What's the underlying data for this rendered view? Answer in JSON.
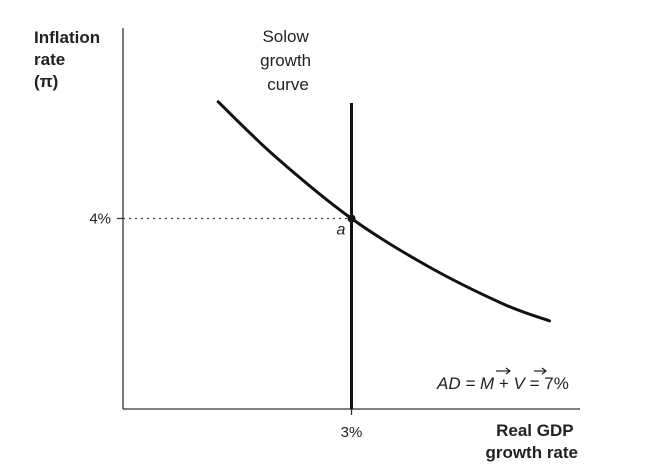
{
  "chart_data": {
    "type": "line",
    "ylabel_lines": [
      "Inflation",
      "rate",
      "(π)"
    ],
    "xlabel_lines": [
      "Real GDP",
      "growth rate"
    ],
    "vertical_line": {
      "x": 3,
      "label_lines": [
        "Solow",
        "growth",
        "curve"
      ]
    },
    "ad_curve": {
      "x": [
        1.25,
        2.0,
        3.0,
        4.0,
        5.0,
        5.6
      ],
      "y": [
        6.45,
        5.3,
        4.0,
        3.0,
        2.2,
        1.85
      ],
      "label": {
        "prefix": "AD = ",
        "m": "M",
        "plus": " + ",
        "v": "V",
        "suffix": " = 7%"
      }
    },
    "point": {
      "x": 3,
      "y": 4,
      "label": "a"
    },
    "x_ticks": [
      {
        "value": 3,
        "label": "3%"
      }
    ],
    "y_ticks": [
      {
        "value": 4,
        "label": "4%"
      }
    ],
    "xlim": [
      0,
      6
    ],
    "ylim": [
      0,
      8
    ]
  }
}
